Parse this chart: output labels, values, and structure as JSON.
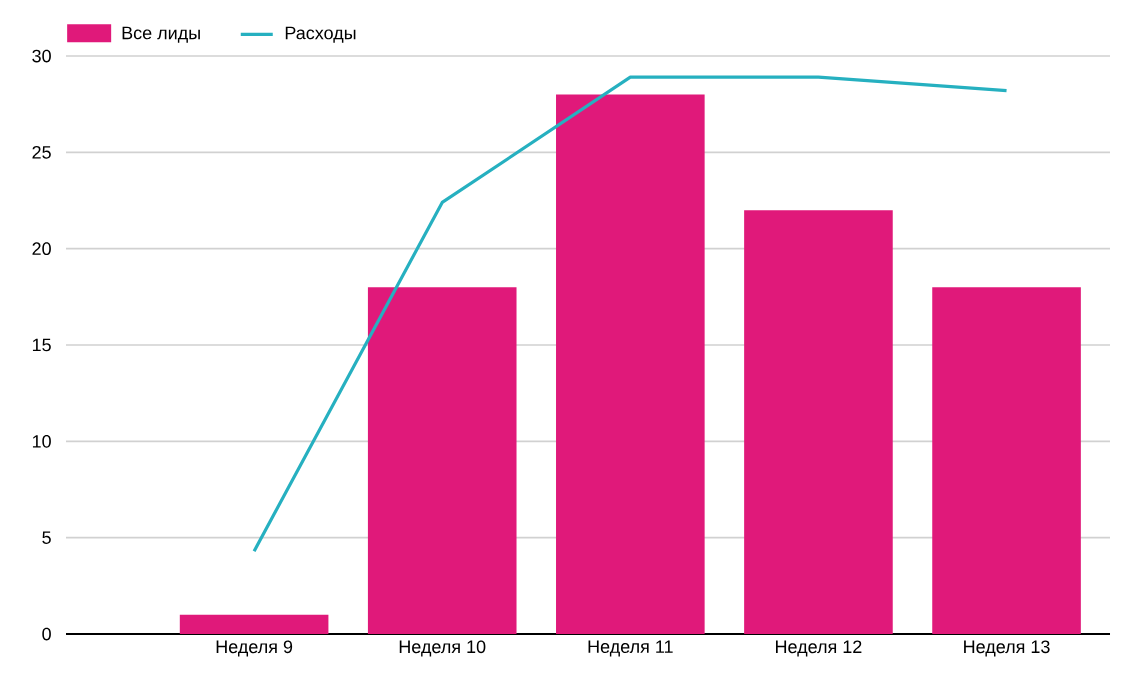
{
  "chart_data": {
    "type": "bar",
    "categories": [
      "Неделя 9",
      "Неделя 10",
      "Неделя 11",
      "Неделя 12",
      "Неделя 13"
    ],
    "series": [
      {
        "name": "Все лиды",
        "color": "#e0197a",
        "values": [
          1,
          18,
          28,
          22,
          18
        ]
      },
      {
        "name": "Расходы",
        "type": "line",
        "color": "#26b0c0",
        "values": [
          4.3,
          22.4,
          28.9,
          28.9,
          28.2
        ]
      }
    ],
    "ylim": [
      0,
      30
    ],
    "yticks": [
      0,
      5,
      10,
      15,
      20,
      25,
      30
    ],
    "grid": "y",
    "legend": "top left"
  }
}
